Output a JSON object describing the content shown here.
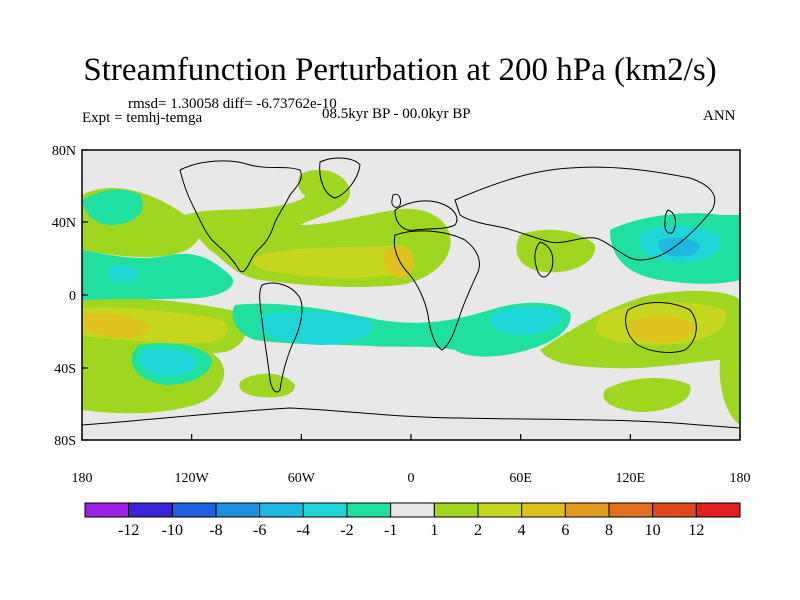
{
  "title": "Streamfunction Perturbation at 200 hPa (km2/s)",
  "stats_text": "rmsd= 1.30058 diff= -6.73762e-10",
  "experiment_text": "Expt = temhj-temga",
  "period_text": "08.5kyr BP - 00.0kyr BP",
  "season_text": "ANN",
  "lat_ticks": [
    "80N",
    "40N",
    "0",
    "40S",
    "80S"
  ],
  "lon_ticks": [
    "180",
    "120W",
    "60W",
    "0",
    "60E",
    "120E",
    "180"
  ],
  "colorbar": {
    "colors": [
      "#9b1fe6",
      "#3a26d6",
      "#1f5fe0",
      "#1f8fe0",
      "#1fb6e0",
      "#1fd6d6",
      "#1fe0a0",
      "#e8e8e8",
      "#9fd61f",
      "#c6d61f",
      "#e0c21f",
      "#e09a1f",
      "#e0701f",
      "#e0481f",
      "#e01f1f"
    ],
    "labels": [
      "-12",
      "-10",
      "-8",
      "-6",
      "-4",
      "-2",
      "-1",
      "1",
      "2",
      "4",
      "6",
      "8",
      "10",
      "12"
    ]
  },
  "colors": {
    "background": "#e8e8e8",
    "pos1": "#9fd61f",
    "pos2": "#c6d61f",
    "pos3": "#e0c21f",
    "neg1": "#1fe0a0",
    "neg2": "#1fd6d6",
    "neg3": "#1fb6e0"
  }
}
